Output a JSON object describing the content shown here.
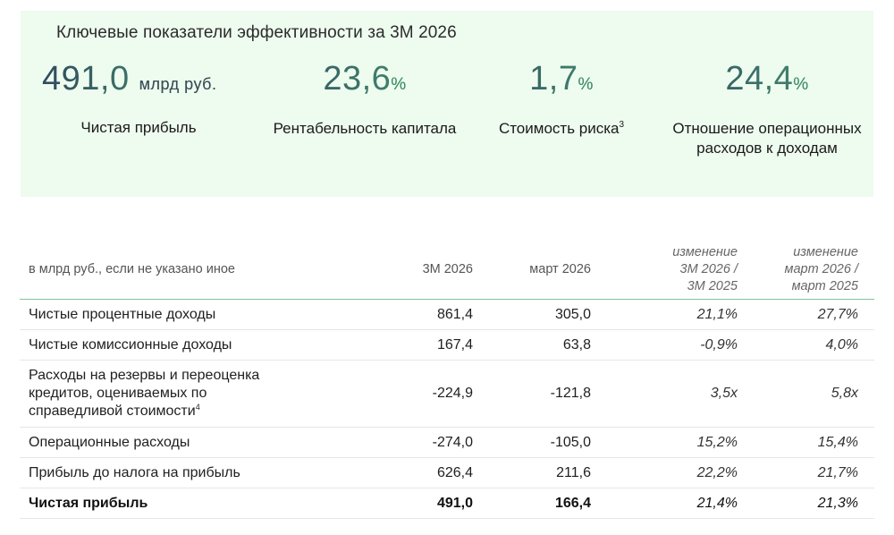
{
  "kpi_panel": {
    "title": "Ключевые показатели эффективности за 3М 2026",
    "background": "#eefbef",
    "items": [
      {
        "value": "491,0",
        "unit": "млрд руб.",
        "label": "Чистая прибыль",
        "footnote": ""
      },
      {
        "value": "23,6",
        "unit": "%",
        "label": "Рентабельность капитала",
        "footnote": ""
      },
      {
        "value": "1,7",
        "unit": "%",
        "label": "Стоимость риска",
        "footnote": "3"
      },
      {
        "value": "24,4",
        "unit": "%",
        "label": "Отношение операционных расходов к доходам",
        "footnote": ""
      }
    ],
    "value_gradient": [
      "#2f4a5e",
      "#3f9b6b"
    ]
  },
  "table": {
    "header": {
      "label_col": "в млрд руб., если не указано иное",
      "col1": "3М 2026",
      "col2": "март 2026",
      "col3_line1": "изменение",
      "col3_line2": "3М 2026 /",
      "col3_line3": "3М 2025",
      "col4_line1": "изменение",
      "col4_line2": "март 2026 /",
      "col4_line3": "март 2025"
    },
    "rows": [
      {
        "label": "Чистые процентные доходы",
        "footnote": "",
        "q1_2026": "861,4",
        "mar_2026": "305,0",
        "chg_q": "21,1%",
        "chg_m": "27,7%"
      },
      {
        "label": "Чистые комиссионные доходы",
        "footnote": "",
        "q1_2026": "167,4",
        "mar_2026": "63,8",
        "chg_q": "-0,9%",
        "chg_m": "4,0%"
      },
      {
        "label_line1": "Расходы на резервы и переоценка",
        "label_line2": "кредитов, оцениваемых по",
        "label_line3": "справедливой стоимости",
        "footnote": "4",
        "q1_2026": "-224,9",
        "mar_2026": "-121,8",
        "chg_q": "3,5x",
        "chg_m": "5,8x"
      },
      {
        "label": "Операционные расходы",
        "footnote": "",
        "q1_2026": "-274,0",
        "mar_2026": "-105,0",
        "chg_q": "15,2%",
        "chg_m": "15,4%"
      },
      {
        "label": "Прибыль до налога на прибыль",
        "footnote": "",
        "q1_2026": "626,4",
        "mar_2026": "211,6",
        "chg_q": "22,2%",
        "chg_m": "21,7%"
      },
      {
        "label": "Чистая прибыль",
        "footnote": "",
        "q1_2026": "491,0",
        "mar_2026": "166,4",
        "chg_q": "21,4%",
        "chg_m": "21,3%"
      }
    ],
    "header_rule_color": "#7fc497"
  }
}
